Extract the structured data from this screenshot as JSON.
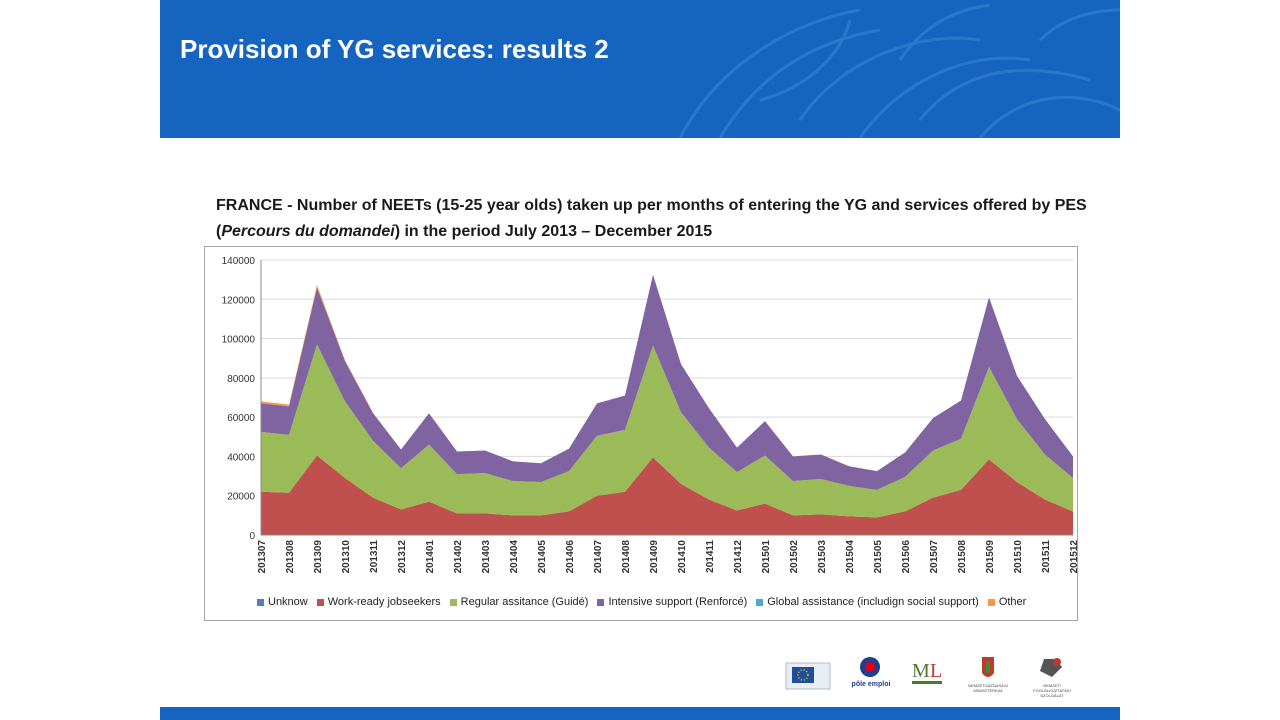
{
  "header": {
    "title": "Provision of YG services: results 2"
  },
  "caption": {
    "part1": "FRANCE - Number of NEETs (15-25 year olds) taken up per months of entering the YG and services offered by PES (",
    "italic": "Percours du domandei",
    "part2": ") in the period July 2013 – December 2015"
  },
  "logos": {
    "pole_emploi": "pôle emploi",
    "ministry": "NEMZETGAZDASÁGI MINISZTÉRIUM",
    "hu_office": "NEMZETI FOGLALKOZTATÁSI SZOLGÁLAT"
  },
  "colors": {
    "header": "#1565c0",
    "unknow": "#4f81bd",
    "work_ready": "#c0504d",
    "regular": "#9bbb59",
    "intensive": "#8064a2",
    "global": "#4bacc6",
    "other": "#f79646"
  },
  "chart_data": {
    "type": "area",
    "stacked": true,
    "title": "",
    "xlabel": "",
    "ylabel": "",
    "ylim": [
      0,
      140000
    ],
    "yticks": [
      0,
      20000,
      40000,
      60000,
      80000,
      100000,
      120000,
      140000
    ],
    "grid": true,
    "legend_position": "bottom",
    "categories": [
      "201307",
      "201308",
      "201309",
      "201310",
      "201311",
      "201312",
      "201401",
      "201402",
      "201403",
      "201404",
      "201405",
      "201406",
      "201407",
      "201408",
      "201409",
      "201410",
      "201411",
      "201412",
      "201501",
      "201502",
      "201503",
      "201504",
      "201505",
      "201506",
      "201507",
      "201508",
      "201509",
      "201510",
      "201511",
      "201512"
    ],
    "series": [
      {
        "name": "Unknow",
        "color": "#4f81bd",
        "values": [
          0,
          0,
          0,
          0,
          0,
          0,
          0,
          0,
          0,
          0,
          0,
          0,
          0,
          0,
          0,
          0,
          0,
          0,
          0,
          0,
          0,
          0,
          0,
          0,
          0,
          0,
          0,
          0,
          0,
          0
        ]
      },
      {
        "name": "Work-ready jobseekers",
        "color": "#c0504d",
        "values": [
          22000,
          21500,
          40500,
          29000,
          19000,
          13000,
          17000,
          11000,
          11000,
          10000,
          10000,
          12000,
          20000,
          22000,
          39500,
          26000,
          18000,
          12500,
          16000,
          10000,
          10500,
          9500,
          9000,
          12000,
          19000,
          23000,
          38500,
          27000,
          18000,
          12000
        ]
      },
      {
        "name": "Regular assitance (Guidé)",
        "color": "#9bbb59",
        "values": [
          30500,
          29500,
          56500,
          39000,
          29000,
          21000,
          29000,
          20000,
          20500,
          17500,
          17000,
          20500,
          30500,
          31500,
          57000,
          36500,
          26500,
          19500,
          24500,
          17500,
          18000,
          15500,
          14000,
          17500,
          24000,
          26000,
          47000,
          32000,
          23000,
          17000
        ]
      },
      {
        "name": "Intensive support (Renforcé)",
        "color": "#8064a2",
        "values": [
          14500,
          14500,
          29000,
          20500,
          14000,
          9500,
          16000,
          11500,
          11500,
          10000,
          9500,
          11500,
          16500,
          17500,
          36000,
          24500,
          20000,
          12500,
          17500,
          12500,
          12500,
          10000,
          9500,
          12500,
          16500,
          19500,
          35500,
          22000,
          18000,
          11000
        ]
      },
      {
        "name": "Global assistance (includign social support)",
        "color": "#4bacc6",
        "values": [
          0,
          0,
          0,
          0,
          0,
          0,
          0,
          0,
          0,
          0,
          0,
          0,
          0,
          0,
          0,
          0,
          0,
          0,
          0,
          0,
          0,
          0,
          0,
          0,
          0,
          0,
          0,
          0,
          0,
          0
        ]
      },
      {
        "name": "Other",
        "color": "#f79646",
        "values": [
          1000,
          900,
          1200,
          500,
          300,
          0,
          0,
          0,
          0,
          0,
          0,
          0,
          0,
          0,
          0,
          0,
          0,
          0,
          0,
          0,
          0,
          0,
          0,
          0,
          0,
          0,
          0,
          0,
          0,
          0
        ]
      }
    ]
  }
}
